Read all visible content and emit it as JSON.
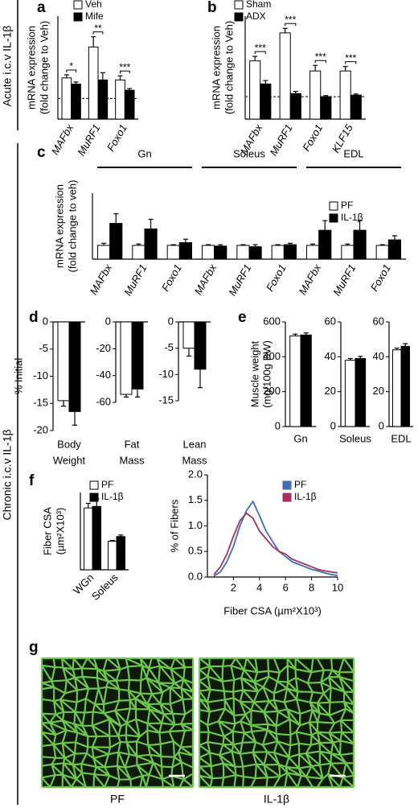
{
  "figure": {
    "panel_labels": [
      "a",
      "b",
      "c",
      "d",
      "e",
      "f",
      "g"
    ],
    "side_labels": [
      "Acute i.c.v IL-1β",
      "Chronic i.c.v IL-1β"
    ],
    "image_labels": [
      "PF",
      "IL-1β"
    ]
  },
  "chart_data": [
    {
      "type": "bar",
      "categories": [
        "MAFbx",
        "MuRF1",
        "Foxo1"
      ],
      "series": [
        {
          "name": "Veh",
          "color": "#ffffff",
          "values": [
            2.0,
            3.5,
            1.9
          ],
          "errors": [
            0.15,
            0.5,
            0.2
          ]
        },
        {
          "name": "Mife",
          "color": "#000000",
          "values": [
            1.7,
            1.9,
            1.4
          ],
          "errors": [
            0.1,
            0.35,
            0.08
          ]
        }
      ],
      "ylim": [
        0,
        5
      ],
      "reference_line": 1,
      "annotations": [
        "*",
        "**",
        "***"
      ],
      "ylabel": [
        "mRNA expression",
        "(fold change to Veh)"
      ]
    },
    {
      "type": "bar",
      "categories": [
        "MAFbx",
        "MuRF1",
        "Foxo1",
        "KLF15"
      ],
      "series": [
        {
          "name": "Sham",
          "color": "#ffffff",
          "values": [
            2.6,
            3.85,
            2.15,
            2.15
          ],
          "errors": [
            0.2,
            0.2,
            0.25,
            0.2
          ]
        },
        {
          "name": "ADX",
          "color": "#000000",
          "values": [
            1.57,
            1.14,
            1.0,
            1.07
          ],
          "errors": [
            0.15,
            0.1,
            0.05,
            0.05
          ]
        }
      ],
      "ylim": [
        0,
        4.6
      ],
      "reference_line": 1,
      "annotations": [
        "***",
        "***",
        "***",
        "***"
      ],
      "ylabel": [
        "mRNA expression",
        "(fold change to Veh)"
      ]
    },
    {
      "type": "bar",
      "categories": [
        "MAFbx",
        "MuRF1",
        "Foxo1",
        "MAFbx",
        "MuRF1",
        "Foxo1",
        "MAFbx",
        "MuRF1",
        "Foxo1"
      ],
      "groups": [
        "Gn",
        "Soleus",
        "EDL"
      ],
      "series": [
        {
          "name": "PF",
          "color": "#ffffff",
          "values": [
            1,
            1,
            1,
            1,
            1,
            1,
            1,
            1,
            1
          ],
          "errors": [
            0.15,
            0.1,
            0.05,
            0.05,
            0.05,
            0.05,
            0.1,
            0.1,
            0.05
          ]
        },
        {
          "name": "IL-1β",
          "color": "#000000",
          "values": [
            2.6,
            2.2,
            1.2,
            0.95,
            0.9,
            1.05,
            2.1,
            2.1,
            1.4
          ],
          "errors": [
            0.7,
            0.7,
            0.25,
            0.1,
            0.15,
            0.1,
            0.7,
            0.7,
            0.3
          ]
        }
      ],
      "ylim": [
        0,
        4.8
      ],
      "ylabel": [
        "mRNA expression",
        "(fold change to veh)"
      ]
    },
    {
      "type": "bar",
      "xlabel": [
        "Body",
        "Weight"
      ],
      "ylabel": [
        "% Initial"
      ],
      "series": [
        {
          "name": "PF",
          "color": "#ffffff",
          "values": [
            -14.5
          ],
          "errors": [
            1.0
          ]
        },
        {
          "name": "IL-1β",
          "color": "#000000",
          "values": [
            -16.5
          ],
          "errors": [
            2.5
          ]
        }
      ],
      "ylim": [
        -20,
        0
      ],
      "yticks": [
        0,
        -5,
        -10,
        -15,
        -20
      ]
    },
    {
      "type": "bar",
      "xlabel": [
        "Fat",
        "Mass"
      ],
      "series": [
        {
          "name": "PF",
          "color": "#ffffff",
          "values": [
            -54
          ],
          "errors": [
            2
          ]
        },
        {
          "name": "IL-1β",
          "color": "#000000",
          "values": [
            -50
          ],
          "errors": [
            6
          ]
        }
      ],
      "ylim": [
        -60,
        0
      ],
      "yticks": [
        0,
        -20,
        -40,
        -60
      ]
    },
    {
      "type": "bar",
      "xlabel": [
        "Lean",
        "Mass"
      ],
      "series": [
        {
          "name": "PF",
          "color": "#ffffff",
          "values": [
            -5
          ],
          "errors": [
            1.5
          ]
        },
        {
          "name": "IL-1β",
          "color": "#000000",
          "values": [
            -9
          ],
          "errors": [
            3.5
          ]
        }
      ],
      "ylim": [
        -15,
        0
      ],
      "yticks": [
        0,
        -5,
        -10,
        -15
      ]
    },
    {
      "type": "bar",
      "xlabel": [
        "Gn"
      ],
      "ylabel": [
        "Muscle weight",
        "(mg/100g BW)"
      ],
      "series": [
        {
          "name": "PF",
          "color": "#ffffff",
          "values": [
            520
          ],
          "errors": [
            10
          ]
        },
        {
          "name": "IL-1β",
          "color": "#000000",
          "values": [
            525
          ],
          "errors": [
            12
          ]
        }
      ],
      "ylim": [
        0,
        600
      ],
      "yticks": [
        0,
        200,
        400,
        600
      ]
    },
    {
      "type": "bar",
      "xlabel": [
        "Soleus"
      ],
      "series": [
        {
          "name": "PF",
          "color": "#ffffff",
          "values": [
            38
          ],
          "errors": [
            1
          ]
        },
        {
          "name": "IL-1β",
          "color": "#000000",
          "values": [
            39
          ],
          "errors": [
            1.2
          ]
        }
      ],
      "ylim": [
        0,
        60
      ],
      "yticks": [
        0,
        20,
        40,
        60
      ]
    },
    {
      "type": "bar",
      "xlabel": [
        "EDL"
      ],
      "series": [
        {
          "name": "PF",
          "color": "#ffffff",
          "values": [
            44
          ],
          "errors": [
            1
          ]
        },
        {
          "name": "IL-1β",
          "color": "#000000",
          "values": [
            46
          ],
          "errors": [
            1.5
          ]
        }
      ],
      "ylim": [
        0,
        60
      ],
      "yticks": [
        0,
        20,
        40,
        60
      ]
    },
    {
      "type": "bar",
      "categories": [
        "WGn",
        "Soleus"
      ],
      "ylabel": [
        "Fiber CSA",
        "(µm²X10³)"
      ],
      "series": [
        {
          "name": "PF",
          "color": "#ffffff",
          "values": [
            4.0,
            1.85
          ],
          "errors": [
            0.3,
            0.05
          ]
        },
        {
          "name": "IL-1β",
          "color": "#000000",
          "values": [
            4.1,
            2.15
          ],
          "errors": [
            0.5,
            0.1
          ]
        }
      ],
      "ylim": [
        0,
        5
      ]
    },
    {
      "type": "line",
      "xlabel": [
        "Fiber CSA (µm²X10³)"
      ],
      "ylabel": [
        "% of Fibers"
      ],
      "x": [
        0.5,
        1,
        1.5,
        2,
        2.5,
        3,
        3.5,
        4,
        4.5,
        5,
        5.5,
        6,
        6.5,
        7,
        7.5,
        8,
        8.5,
        9,
        9.5,
        10
      ],
      "series": [
        {
          "name": "PF",
          "color": "#3d6db5",
          "values": [
            0.02,
            0.1,
            0.3,
            0.6,
            1.0,
            1.3,
            1.48,
            1.2,
            0.9,
            0.7,
            0.5,
            0.4,
            0.3,
            0.25,
            0.2,
            0.15,
            0.12,
            0.08,
            0.05,
            0.03
          ]
        },
        {
          "name": "IL-1β",
          "color": "#a3305e",
          "values": [
            0.05,
            0.2,
            0.45,
            0.8,
            1.1,
            1.25,
            1.15,
            0.9,
            0.75,
            0.6,
            0.5,
            0.45,
            0.35,
            0.3,
            0.25,
            0.2,
            0.15,
            0.12,
            0.1,
            0.08
          ]
        }
      ],
      "xlim": [
        0,
        10
      ],
      "xticks": [
        2,
        4,
        6,
        8,
        10
      ],
      "ylim": [
        0,
        2
      ],
      "yticks": [
        {
          "value": 0,
          "label": "0.0"
        },
        0.5,
        {
          "value": 1,
          "label": "1.0"
        },
        1.5,
        {
          "value": 2,
          "label": "2.0"
        }
      ]
    }
  ]
}
